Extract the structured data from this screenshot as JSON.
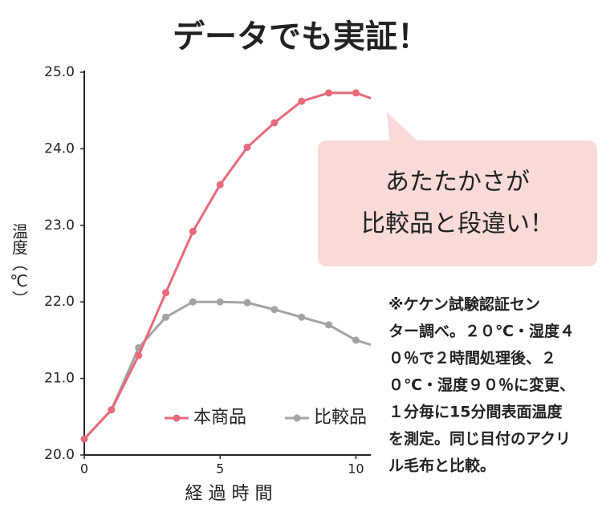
{
  "chart_data": {
    "type": "line",
    "title": "データでも実証！",
    "y_label": "温度（℃）",
    "x_label": "経 過 時 間",
    "x": [
      0,
      1,
      2,
      3,
      4,
      5,
      6,
      7,
      8,
      9,
      10,
      10.55
    ],
    "series": [
      {
        "name": "本商品",
        "color": "#e8697b",
        "values": [
          20.21,
          20.59,
          21.3,
          22.12,
          22.92,
          23.53,
          24.02,
          24.34,
          24.62,
          24.73,
          24.73,
          24.66
        ]
      },
      {
        "name": "比較品",
        "color": "#a3a3a3",
        "values": [
          20.21,
          20.59,
          21.4,
          21.8,
          22.0,
          22.0,
          21.99,
          21.9,
          21.8,
          21.7,
          21.5,
          21.44
        ]
      }
    ],
    "xlim": [
      0,
      10.55
    ],
    "xticks": [
      0,
      5,
      10
    ],
    "ylim": [
      20,
      25
    ],
    "yticks": [
      {
        "value": 20,
        "label": "20.0"
      },
      {
        "value": 21,
        "label": "21.0"
      },
      {
        "value": 22,
        "label": "22.0"
      },
      {
        "value": 23,
        "label": "23.0"
      },
      {
        "value": 24,
        "label": "24.0"
      },
      {
        "value": 25,
        "label": "25.0"
      }
    ],
    "legend": "lower right",
    "annotation": [
      "あたたかさが",
      "比較品と段違い！"
    ],
    "note": [
      "※ケケン試験認証セン",
      "ター調べ。２０℃・湿度４",
      "０％で２時間処理後、２",
      "０℃・湿度９０％に変更、",
      "１分毎に15分間表面温度",
      "を測定。同じ目付のアクリ",
      "ル毛布と比較。"
    ]
  }
}
